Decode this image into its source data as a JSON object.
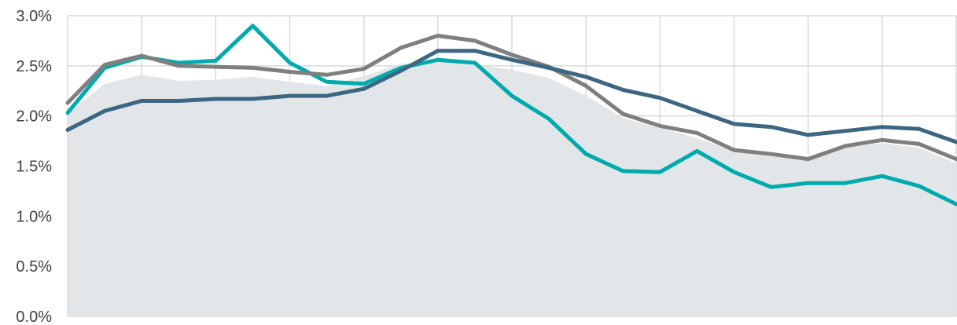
{
  "chart_data": {
    "type": "line",
    "title": "",
    "xlabel": "",
    "ylabel": "",
    "ylim": [
      0,
      3.0
    ],
    "y_ticks": [
      {
        "value": 0.0,
        "label": "0.0%"
      },
      {
        "value": 0.5,
        "label": "0.5%"
      },
      {
        "value": 1.0,
        "label": "1.0%"
      },
      {
        "value": 1.5,
        "label": "1.5%"
      },
      {
        "value": 2.0,
        "label": "2.0%"
      },
      {
        "value": 2.5,
        "label": "2.5%"
      },
      {
        "value": 3.0,
        "label": "3.0%"
      }
    ],
    "x": [
      0,
      1,
      2,
      3,
      4,
      5,
      6,
      7,
      8,
      9,
      10,
      11,
      12,
      13,
      14,
      15,
      16,
      17,
      18,
      19,
      20,
      21,
      22,
      23,
      24
    ],
    "grid": true,
    "legend": "none",
    "series": [
      {
        "kind": "area",
        "color": "#e2e6e9",
        "values": [
          2.02,
          2.32,
          2.41,
          2.35,
          2.36,
          2.39,
          2.34,
          2.3,
          2.4,
          2.52,
          2.55,
          2.51,
          2.46,
          2.38,
          2.2,
          1.98,
          1.88,
          1.78,
          1.65,
          1.6,
          1.58,
          1.68,
          1.73,
          1.68,
          1.53
        ]
      },
      {
        "kind": "line",
        "color": "#00aaad",
        "values": [
          2.03,
          2.48,
          2.59,
          2.53,
          2.55,
          2.9,
          2.53,
          2.34,
          2.32,
          2.48,
          2.56,
          2.53,
          2.2,
          1.97,
          1.62,
          1.45,
          1.44,
          1.65,
          1.44,
          1.29,
          1.33,
          1.33,
          1.4,
          1.3,
          1.12
        ]
      },
      {
        "kind": "line",
        "color": "#7f7f7f",
        "values": [
          2.13,
          2.51,
          2.6,
          2.5,
          2.49,
          2.48,
          2.44,
          2.41,
          2.47,
          2.68,
          2.8,
          2.75,
          2.61,
          2.49,
          2.3,
          2.02,
          1.9,
          1.83,
          1.66,
          1.62,
          1.57,
          1.7,
          1.76,
          1.72,
          1.57
        ]
      },
      {
        "kind": "line",
        "color": "#3c6682",
        "values": [
          1.86,
          2.05,
          2.15,
          2.15,
          2.17,
          2.17,
          2.2,
          2.2,
          2.27,
          2.45,
          2.65,
          2.65,
          2.56,
          2.48,
          2.39,
          2.26,
          2.18,
          2.05,
          1.92,
          1.89,
          1.81,
          1.85,
          1.89,
          1.87,
          1.74
        ]
      }
    ]
  }
}
